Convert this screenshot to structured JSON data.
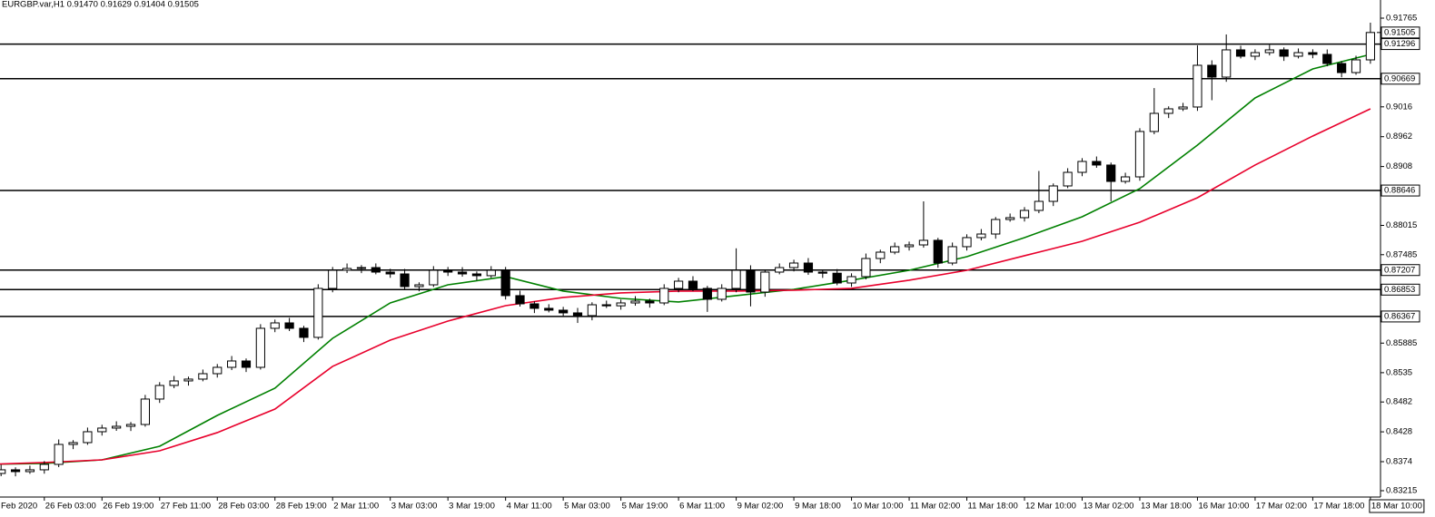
{
  "chart_data": {
    "type": "candlestick",
    "title": "EURGBP.var,H1  0.91470 0.91629 0.91404 0.91505",
    "up_color": "#ffffff",
    "down_color": "#000000",
    "wick_color": "#000000",
    "x": [
      0,
      4,
      8,
      12,
      16,
      20,
      24,
      28,
      32,
      36,
      40,
      44,
      48,
      52,
      56,
      60,
      64,
      68,
      72,
      76,
      80,
      84,
      88,
      92,
      96,
      100,
      104,
      108,
      112,
      116,
      120,
      124,
      128,
      132,
      136,
      140,
      144,
      148,
      152,
      156,
      160,
      164,
      168,
      172,
      176,
      180,
      184,
      188,
      192,
      196,
      200,
      204,
      208,
      212,
      216,
      220,
      224,
      228,
      232,
      236,
      240,
      244,
      248,
      252,
      256,
      260,
      264,
      268,
      272,
      276,
      280,
      284,
      288,
      292,
      296,
      300,
      304,
      308,
      312,
      316,
      320,
      324,
      328,
      332,
      336,
      340,
      344,
      348,
      352,
      356,
      360,
      364,
      368,
      372,
      376,
      380,
      384
    ],
    "open": [
      0.8347,
      0.83527,
      0.83593,
      0.8356,
      0.83593,
      0.83691,
      0.84052,
      0.84085,
      0.84282,
      0.84348,
      0.8438,
      0.84413,
      0.84873,
      0.85119,
      0.85201,
      0.85234,
      0.85332,
      0.85447,
      0.85562,
      0.85447,
      0.86153,
      0.86251,
      0.86153,
      0.85989,
      0.86875,
      0.87203,
      0.87236,
      0.87252,
      0.8717,
      0.87137,
      0.86908,
      0.8694,
      0.87203,
      0.8717,
      0.87137,
      0.87105,
      0.87203,
      0.86744,
      0.86596,
      0.86514,
      0.86481,
      0.86432,
      0.86383,
      0.86579,
      0.8656,
      0.86612,
      0.86645,
      0.86612,
      0.86875,
      0.87006,
      0.86875,
      0.86678,
      0.86875,
      0.87203,
      0.86809,
      0.8717,
      0.87252,
      0.87334,
      0.8717,
      0.8715,
      0.86973,
      0.87088,
      0.87416,
      0.87531,
      0.8763,
      0.87662,
      0.87745,
      0.87334,
      0.8763,
      0.87794,
      0.87859,
      0.88122,
      0.88155,
      0.88286,
      0.8845,
      0.88729,
      0.88975,
      0.89172,
      0.89107,
      0.88811,
      0.88893,
      0.89714,
      0.90042,
      0.90124,
      0.90157,
      0.90912,
      0.90698,
      0.91191,
      0.91076,
      0.91141,
      0.91191,
      0.91076,
      0.91141,
      0.91109,
      0.90944,
      0.9078,
      0.9101
    ],
    "high": [
      0.83587,
      0.83683,
      0.83638,
      0.83668,
      0.83751,
      0.84142,
      0.8413,
      0.84357,
      0.84408,
      0.8447,
      0.84458,
      0.84948,
      0.85179,
      0.85291,
      0.85279,
      0.85407,
      0.85507,
      0.85652,
      0.85607,
      0.86228,
      0.86311,
      0.86341,
      0.86198,
      0.8695,
      0.87263,
      0.87326,
      0.87297,
      0.87327,
      0.8723,
      0.87227,
      0.86985,
      0.87278,
      0.87263,
      0.8726,
      0.87182,
      0.87278,
      0.87263,
      0.86834,
      0.86641,
      0.86589,
      0.86541,
      0.86522,
      0.86624,
      0.86654,
      0.86672,
      0.86735,
      0.8669,
      0.8695,
      0.87066,
      0.87096,
      0.8692,
      0.8695,
      0.876,
      0.87293,
      0.87215,
      0.87327,
      0.87394,
      0.87424,
      0.87215,
      0.87225,
      0.87148,
      0.87506,
      0.87576,
      0.87705,
      0.87722,
      0.8845,
      0.8779,
      0.87705,
      0.87854,
      0.87949,
      0.88167,
      0.8823,
      0.88346,
      0.89,
      0.88774,
      0.8905,
      0.89232,
      0.89262,
      0.89152,
      0.88968,
      0.89774,
      0.905,
      0.90169,
      0.90232,
      0.91273,
      0.91002,
      0.9147,
      0.91266,
      0.91201,
      0.91281,
      0.91236,
      0.91216,
      0.91201,
      0.91199,
      0.90989,
      0.91085,
      0.91683
    ],
    "low": [
      0.834,
      0.83477,
      0.83475,
      0.8352,
      0.83523,
      0.83641,
      0.83967,
      0.84045,
      0.84212,
      0.84298,
      0.84295,
      0.84373,
      0.84803,
      0.85069,
      0.85116,
      0.85194,
      0.85262,
      0.85397,
      0.85362,
      0.85407,
      0.86083,
      0.86103,
      0.85904,
      0.85949,
      0.86805,
      0.87153,
      0.87151,
      0.8713,
      0.87067,
      0.86858,
      0.86823,
      0.869,
      0.871,
      0.87087,
      0.8702,
      0.87065,
      0.86674,
      0.86546,
      0.86429,
      0.86441,
      0.86362,
      0.8625,
      0.86298,
      0.8652,
      0.8649,
      0.86562,
      0.86527,
      0.86572,
      0.86805,
      0.86825,
      0.8645,
      0.86638,
      0.86805,
      0.8655,
      0.86724,
      0.8713,
      0.87182,
      0.8712,
      0.87065,
      0.86933,
      0.86903,
      0.87038,
      0.87331,
      0.87491,
      0.8756,
      0.87612,
      0.87249,
      0.87294,
      0.8756,
      0.87744,
      0.87774,
      0.88082,
      0.88085,
      0.88236,
      0.88365,
      0.88689,
      0.88905,
      0.89057,
      0.8845,
      0.88771,
      0.88823,
      0.89664,
      0.89957,
      0.90084,
      0.90087,
      0.9028,
      0.90613,
      0.91036,
      0.91006,
      0.91091,
      0.90991,
      0.91036,
      0.91039,
      0.90894,
      0.90695,
      0.9074,
      0.9094
    ],
    "close": [
      0.83527,
      0.83593,
      0.8356,
      0.83593,
      0.83691,
      0.84052,
      0.84085,
      0.84282,
      0.84348,
      0.8438,
      0.84413,
      0.84873,
      0.85119,
      0.85201,
      0.85234,
      0.85332,
      0.85447,
      0.85562,
      0.85447,
      0.86153,
      0.86251,
      0.86153,
      0.85989,
      0.86875,
      0.87203,
      0.87236,
      0.87252,
      0.8717,
      0.87137,
      0.86908,
      0.8694,
      0.87203,
      0.8717,
      0.87137,
      0.87105,
      0.87203,
      0.86744,
      0.86596,
      0.86514,
      0.86481,
      0.86432,
      0.86383,
      0.86579,
      0.8656,
      0.86612,
      0.86645,
      0.86612,
      0.86875,
      0.87006,
      0.86875,
      0.86678,
      0.86875,
      0.87203,
      0.86809,
      0.8717,
      0.87252,
      0.87334,
      0.8717,
      0.8715,
      0.86973,
      0.87088,
      0.87416,
      0.87531,
      0.8763,
      0.87662,
      0.87745,
      0.87334,
      0.8763,
      0.87794,
      0.87859,
      0.88122,
      0.88155,
      0.88286,
      0.8845,
      0.88729,
      0.88975,
      0.89172,
      0.89107,
      0.88811,
      0.88893,
      0.89714,
      0.90042,
      0.90124,
      0.90157,
      0.90912,
      0.90698,
      0.91191,
      0.91076,
      0.91141,
      0.91191,
      0.91076,
      0.91141,
      0.91109,
      0.90944,
      0.9078,
      0.9101,
      0.91505
    ],
    "lines": [
      {
        "color": "#008000",
        "x": [
          0,
          16,
          32,
          48,
          64,
          80,
          96,
          112,
          128,
          144,
          160,
          176,
          192,
          208,
          224,
          240,
          256,
          272,
          288,
          304,
          320,
          336,
          352,
          368,
          384
        ],
        "values": [
          0.83691,
          0.83708,
          0.83773,
          0.84019,
          0.84577,
          0.8507,
          0.85972,
          0.86612,
          0.8694,
          0.87088,
          0.86826,
          0.86694,
          0.86629,
          0.86744,
          0.86858,
          0.87023,
          0.87203,
          0.87449,
          0.87794,
          0.88171,
          0.8868,
          0.89468,
          0.90321,
          0.90846,
          0.91109
        ]
      },
      {
        "color": "#e8002c",
        "x": [
          0,
          16,
          32,
          48,
          64,
          80,
          96,
          112,
          128,
          144,
          160,
          176,
          192,
          208,
          224,
          240,
          256,
          272,
          288,
          304,
          320,
          336,
          352,
          368,
          384
        ],
        "values": [
          0.83691,
          0.83724,
          0.83773,
          0.83937,
          0.84266,
          0.84692,
          0.85464,
          0.85939,
          0.86284,
          0.86563,
          0.86711,
          0.86793,
          0.86826,
          0.86826,
          0.86842,
          0.86875,
          0.87023,
          0.87203,
          0.87466,
          0.87728,
          0.88073,
          0.88516,
          0.89107,
          0.89632,
          0.90124
        ]
      }
    ],
    "levels": [
      0.91296,
      0.90669,
      0.88646,
      0.87207,
      0.86853,
      0.86367
    ],
    "level_color": "#000000",
    "current_price": 0.91505,
    "xlim": [
      3.7,
      386.8
    ],
    "xticks": [
      {
        "value": 0,
        "label": "Feb 2020"
      },
      {
        "value": 16,
        "label": "26 Feb 03:00"
      },
      {
        "value": 32,
        "label": "26 Feb 19:00"
      },
      {
        "value": 48,
        "label": "27 Feb 11:00"
      },
      {
        "value": 64,
        "label": "28 Feb 03:00"
      },
      {
        "value": 80,
        "label": "28 Feb 19:00"
      },
      {
        "value": 96,
        "label": "2 Mar 11:00"
      },
      {
        "value": 112,
        "label": "3 Mar 03:00"
      },
      {
        "value": 128,
        "label": "3 Mar 19:00"
      },
      {
        "value": 144,
        "label": "4 Mar 11:00"
      },
      {
        "value": 160,
        "label": "5 Mar 03:00"
      },
      {
        "value": 176,
        "label": "5 Mar 19:00"
      },
      {
        "value": 192,
        "label": "6 Mar 11:00"
      },
      {
        "value": 208,
        "label": "9 Mar 02:00"
      },
      {
        "value": 224,
        "label": "9 Mar 18:00"
      },
      {
        "value": 240,
        "label": "10 Mar 10:00"
      },
      {
        "value": 256,
        "label": "11 Mar 02:00"
      },
      {
        "value": 272,
        "label": "11 Mar 18:00"
      },
      {
        "value": 288,
        "label": "12 Mar 10:00"
      },
      {
        "value": 304,
        "label": "13 Mar 02:00"
      },
      {
        "value": 320,
        "label": "13 Mar 18:00"
      },
      {
        "value": 336,
        "label": "16 Mar 10:00"
      },
      {
        "value": 352,
        "label": "17 Mar 02:00"
      },
      {
        "value": 368,
        "label": "17 Mar 18:00"
      },
      {
        "value": 384,
        "label": "18 Mar 10:00"
      }
    ],
    "ylim": [
      0.831,
      0.91929
    ],
    "yticks": [
      0.91765,
      0.9016,
      0.8962,
      0.8908,
      0.88015,
      0.87485,
      0.85885,
      0.8535,
      0.8482,
      0.8428,
      0.8374,
      0.83215
    ]
  }
}
